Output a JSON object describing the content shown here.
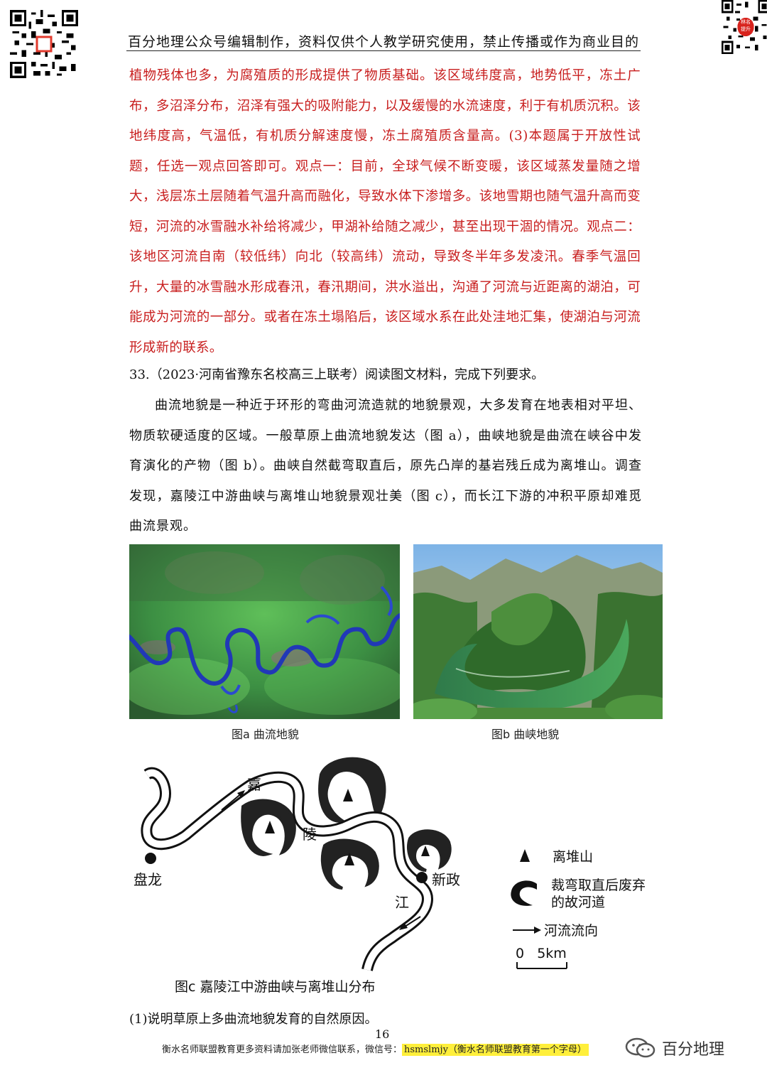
{
  "header": {
    "text": "百分地理公众号编辑制作，资料仅供个人教学研究使用，禁止传播或作为商业目的",
    "qr_right_badge": "林名",
    "qr_right_badge2": "提升"
  },
  "answer_text": "植物残体也多，为腐殖质的形成提供了物质基础。该区域纬度高，地势低平，冻土广布，多沼泽分布，沼泽有强大的吸附能力，以及缓慢的水流速度，利于有机质沉积。该地纬度高，气温低，有机质分解速度慢，冻土腐殖质含量高。(3)本题属于开放性试题，任选一观点回答即可。观点一：目前，全球气候不断变暖，该区域蒸发量随之增大，浅层冻土层随着气温升高而融化，导致水体下渗增多。该地雪期也随气温升高而变短，河流的冰雪融水补给将减少，甲湖补给随之减少，甚至出现干涸的情况。观点二：该地区河流自南（较低纬）向北（较高纬）流动，导致冬半年多发凌汛。春季气温回升，大量的冰雪融水形成春汛，春汛期间，洪水溢出，沟通了河流与近距离的湖泊，可能成为河流的一部分。或者在冻土塌陷后，该区域水系在此处洼地汇集，使湖泊与河流形成新的联系。",
  "question": {
    "title": "33.（2023·河南省豫东名校高三上联考）阅读图文材料，完成下列要求。",
    "material": "曲流地貌是一种近于环形的弯曲河流造就的地貌景观，大多发育在地表相对平坦、物质软硬适度的区域。一般草原上曲流地貌发达（图 a），曲峡地貌是曲流在峡谷中发育演化的产物（图 b）。曲峡自然截弯取直后，原先凸岸的基岩残丘成为离堆山。调查发现，嘉陵江中游曲峡与离堆山地貌景观壮美（图 c），而长江下游的冲积平原却难觅曲流景观。",
    "sub_question": "(1)说明草原上多曲流地貌发育的自然原因。"
  },
  "figures": {
    "fig_a_caption": "图a  曲流地貌",
    "fig_b_caption": "图b  曲峡地貌",
    "fig_c_caption": "图c  嘉陵江中游曲峡与离堆山分布",
    "map_labels": {
      "jia": "嘉",
      "ling": "陵",
      "jiang": "江",
      "panlong": "盘龙",
      "xinzheng": "新政"
    },
    "legend": {
      "mesa": "离堆山",
      "old_channel_line1": "裁弯取直后废弃",
      "old_channel_line2": "的故河道",
      "flow": "河流流向",
      "scale": "0   5km"
    }
  },
  "footer": {
    "page_number": "16",
    "contact_text": "衡水名师联盟教育更多资料请加张老师微信联系，微信号：",
    "wechat_id": "hsmslmjy（衡水名师联盟教育第一个字母）",
    "brand": "百分地理"
  },
  "colors": {
    "answer_red": "#c81e1e",
    "highlight_yellow": "#ffef3b"
  }
}
